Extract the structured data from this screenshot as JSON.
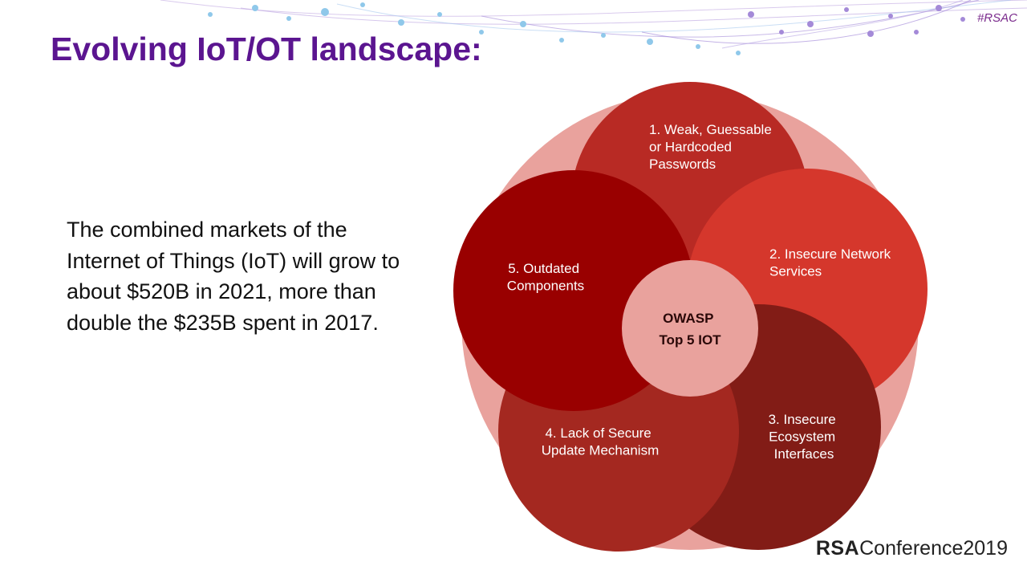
{
  "slide": {
    "hashtag": "#RSAC",
    "title": "Evolving IoT/OT landscape:",
    "body": "The combined markets of the Internet of Things (IoT) will grow to about $520B in 2021, more than double the $235B spent in 2017."
  },
  "diagram": {
    "center": [
      "OWASP",
      "Top 5 IOT"
    ],
    "items": [
      {
        "lines": [
          "1. Weak, Guessable",
          "or Hardcoded",
          "Passwords"
        ],
        "color": "#b82a24"
      },
      {
        "lines": [
          "2. Insecure Network",
          "Services"
        ],
        "color": "#d5372c"
      },
      {
        "lines": [
          "3. Insecure",
          "Ecosystem",
          "Interfaces"
        ],
        "color": "#821c16"
      },
      {
        "lines": [
          "4. Lack of Secure",
          "Update Mechanism"
        ],
        "color": "#a42820"
      },
      {
        "lines": [
          "5. Outdated",
          "Components"
        ],
        "color": "#990000"
      }
    ],
    "background_color": "#e9a29d",
    "center_color": "#e9a29d"
  },
  "footer": {
    "logo_rsa": "RSA",
    "logo_conference": "Conference2019"
  }
}
